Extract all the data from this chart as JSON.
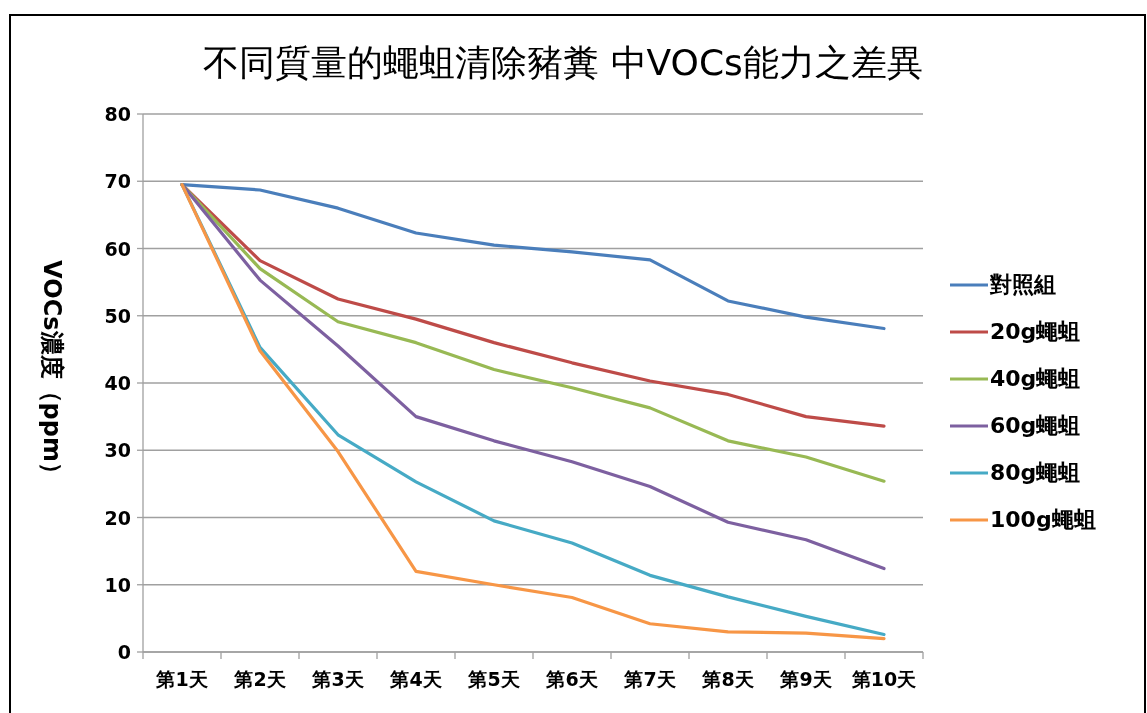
{
  "chart_data": {
    "type": "line",
    "title": "不同質量的蠅蛆清除豬糞 中VOCs能力之差異",
    "ylabel": "VOCs濃度（ppm）",
    "categories": [
      "第1天",
      "第2天",
      "第3天",
      "第4天",
      "第5天",
      "第6天",
      "第7天",
      "第8天",
      "第9天",
      "第10天"
    ],
    "series": [
      {
        "name": "對照組",
        "color": "#4a7ebb",
        "values": [
          69.5,
          68.7,
          66,
          62.3,
          60.5,
          59.5,
          58.3,
          52.2,
          49.8,
          48.1
        ]
      },
      {
        "name": "20g蠅蛆",
        "color": "#be4b48",
        "values": [
          69.5,
          58.2,
          52.5,
          49.5,
          46,
          43,
          40.3,
          38.3,
          35,
          33.6
        ]
      },
      {
        "name": "40g蠅蛆",
        "color": "#98b954",
        "values": [
          69.5,
          57,
          49.1,
          46,
          42,
          39.3,
          36.3,
          31.4,
          29,
          25.4
        ]
      },
      {
        "name": "60g蠅蛆",
        "color": "#7d60a0",
        "values": [
          69.5,
          55.3,
          45.5,
          35,
          31.4,
          28.3,
          24.6,
          19.3,
          16.7,
          12.4
        ]
      },
      {
        "name": "80g蠅蛆",
        "color": "#46aac5",
        "values": [
          69.5,
          45.3,
          32.3,
          25.3,
          19.5,
          16.2,
          11.4,
          8.2,
          5.3,
          2.6
        ]
      },
      {
        "name": "100g蠅蛆",
        "color": "#f79646",
        "values": [
          69.5,
          44.8,
          29.8,
          12,
          10,
          8.1,
          4.2,
          3,
          2.8,
          2
        ]
      }
    ],
    "ylim": [
      0,
      80
    ],
    "yticks": [
      0,
      10,
      20,
      30,
      40,
      50,
      60,
      70,
      80
    ],
    "grid": "y",
    "legend": "right"
  }
}
